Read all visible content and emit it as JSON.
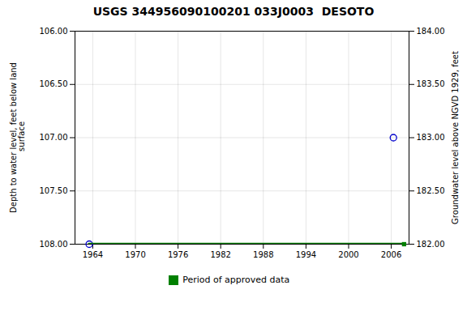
{
  "chart_data": {
    "type": "scatter",
    "title": "USGS 344956090100201 033J0003  DESOTO",
    "ylabel": "Depth to water level, feet below land\n surface",
    "y2label": "Groundwater level above NGVD 1929, feet",
    "xlim": [
      1961.5,
      2008.5
    ],
    "xticks": [
      1964,
      1970,
      1976,
      1982,
      1988,
      1994,
      2000,
      2006
    ],
    "ylim": [
      108.0,
      106.0
    ],
    "yticks": [
      {
        "value": 106.0,
        "label": "106.00"
      },
      {
        "value": 106.5,
        "label": "106.50"
      },
      {
        "value": 107.0,
        "label": "107.00"
      },
      {
        "value": 107.5,
        "label": "107.50"
      },
      {
        "value": 108.0,
        "label": "108.00"
      }
    ],
    "y2lim": [
      182.0,
      184.0
    ],
    "y2ticks": [
      {
        "value": 182.0,
        "label": "182.00"
      },
      {
        "value": 182.5,
        "label": "182.50"
      },
      {
        "value": 183.0,
        "label": "183.00"
      },
      {
        "value": 183.5,
        "label": "183.50"
      },
      {
        "value": 184.0,
        "label": "184.00"
      }
    ],
    "grid": true,
    "legend": "bottom",
    "series": [
      {
        "type": "scatter",
        "marker": "circle",
        "color": "#0000cc",
        "x": [
          1963.5,
          2006.3
        ],
        "values": [
          108.0,
          107.0
        ]
      },
      {
        "name": "Period of approved data",
        "type": "line",
        "line_style": "solid",
        "color": "#008000",
        "x": [
          1963.5,
          2007.8
        ],
        "values": [
          108.0,
          108.0
        ]
      },
      {
        "type": "scatter",
        "marker": "square",
        "color": "#008000",
        "x": [
          2007.8
        ],
        "values": [
          108.0
        ]
      }
    ]
  }
}
